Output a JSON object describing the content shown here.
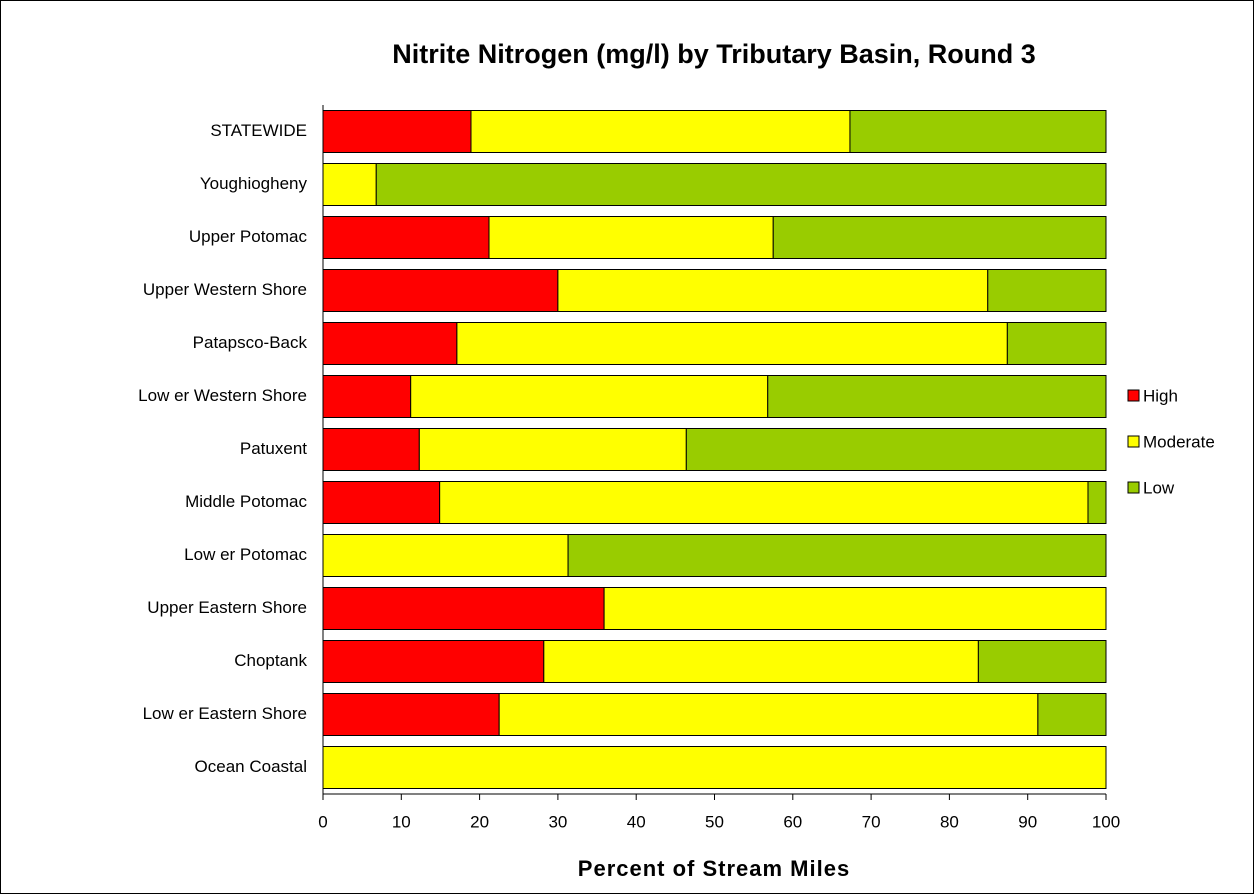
{
  "chart_data": {
    "type": "stacked_bar_horizontal",
    "title": "Nitrite Nitrogen (mg/l) by Tributary Basin, Round 3",
    "x_label": "Percent of Stream Miles",
    "categories": [
      "STATEWIDE",
      "Youghiogheny",
      "Upper Potomac",
      "Upper Western Shore",
      "Patapsco-Back",
      "Low er Western Shore",
      "Patuxent",
      "Middle Potomac",
      "Low er Potomac",
      "Upper Eastern Shore",
      "Choptank",
      "Low er Eastern Shore",
      "Ocean Coastal"
    ],
    "series": [
      {
        "name": "High",
        "color": "#ff0000",
        "values": [
          18.9,
          0,
          21.2,
          30.0,
          17.1,
          11.2,
          12.3,
          14.9,
          0,
          35.9,
          28.2,
          22.5,
          0
        ]
      },
      {
        "name": "Moderate",
        "color": "#ffff00",
        "values": [
          48.4,
          6.8,
          36.3,
          54.9,
          70.3,
          45.6,
          34.1,
          82.8,
          31.3,
          64.1,
          55.5,
          68.8,
          100
        ]
      },
      {
        "name": "Low",
        "color": "#99cc00",
        "values": [
          32.7,
          93.2,
          42.5,
          15.1,
          12.6,
          43.2,
          53.6,
          2.3,
          68.7,
          0,
          16.3,
          8.7,
          0
        ]
      }
    ],
    "xlim": [
      0,
      100
    ],
    "xticks": [
      0,
      10,
      20,
      30,
      40,
      50,
      60,
      70,
      80,
      90,
      100
    ],
    "legend": "right"
  }
}
